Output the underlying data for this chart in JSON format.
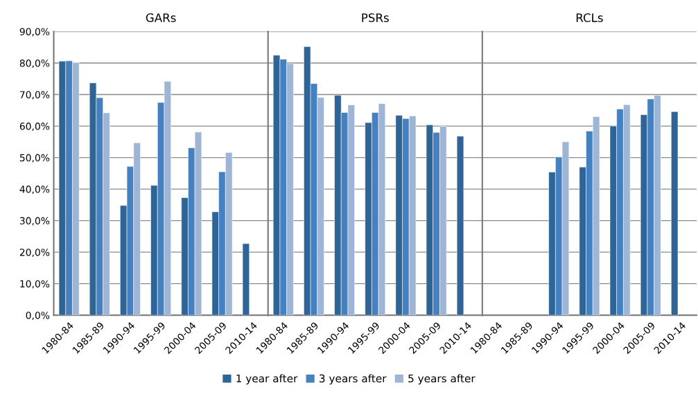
{
  "chart_data": [
    {
      "type": "bar",
      "title": "GARs",
      "categories": [
        "1980-84",
        "1985-89",
        "1990-94",
        "1995-99",
        "2000-04",
        "2005-09",
        "2010-14"
      ],
      "series": [
        {
          "name": "1 year after",
          "color": "#2f6497",
          "values": [
            80.6,
            73.7,
            34.8,
            41.2,
            37.3,
            32.8,
            22.7
          ]
        },
        {
          "name": "3 years after",
          "color": "#4580c0",
          "values": [
            80.7,
            69.0,
            47.2,
            67.5,
            53.1,
            45.5,
            null
          ]
        },
        {
          "name": "5 years after",
          "color": "#9fb5d5",
          "values": [
            80.1,
            64.2,
            54.7,
            74.2,
            58.1,
            51.6,
            null
          ]
        }
      ],
      "ylim": [
        0,
        90
      ],
      "yticks": [
        {
          "value": 0,
          "label": "0,0%"
        },
        {
          "value": 10,
          "label": "10,0%"
        },
        {
          "value": 20,
          "label": "20,0%"
        },
        {
          "value": 30,
          "label": "30,0%"
        },
        {
          "value": 40,
          "label": "40,0%"
        },
        {
          "value": 50,
          "label": "50,0%"
        },
        {
          "value": 60,
          "label": "60,0%"
        },
        {
          "value": 70,
          "label": "70,0%"
        },
        {
          "value": 80,
          "label": "80,0%"
        },
        {
          "value": 90,
          "label": "90,0%"
        }
      ],
      "grid": "y",
      "legend": "bottom"
    },
    {
      "type": "bar",
      "title": "PSRs",
      "categories": [
        "1980-84",
        "1985-89",
        "1990-94",
        "1995-99",
        "2000-04",
        "2005-09",
        "2010-14"
      ],
      "series": [
        {
          "color": "#2f6497",
          "values": [
            82.5,
            85.2,
            69.8,
            61.1,
            63.4,
            60.4,
            56.8
          ]
        },
        {
          "color": "#4580c0",
          "values": [
            81.2,
            73.5,
            64.3,
            64.3,
            62.4,
            58.0,
            null
          ]
        },
        {
          "color": "#9fb5d5",
          "values": [
            79.8,
            69.1,
            66.7,
            67.1,
            63.2,
            59.9,
            null
          ]
        }
      ],
      "ylim": [
        0,
        90
      ],
      "yticks": [
        {
          "value": 0,
          "label": null
        },
        {
          "value": 10,
          "label": null
        },
        {
          "value": 20,
          "label": null
        },
        {
          "value": 30,
          "label": null
        },
        {
          "value": 40,
          "label": null
        },
        {
          "value": 50,
          "label": null
        },
        {
          "value": 60,
          "label": null
        },
        {
          "value": 70,
          "label": null
        },
        {
          "value": 80,
          "label": null
        },
        {
          "value": 90,
          "label": null
        }
      ],
      "grid": "y",
      "tick_labels": "x"
    },
    {
      "type": "bar",
      "title": "RCLs",
      "categories": [
        "1980-84",
        "1985-89",
        "1990-94",
        "1995-99",
        "2000-04",
        "2005-09",
        "2010-14"
      ],
      "series": [
        {
          "color": "#2f6497",
          "values": [
            null,
            null,
            45.4,
            47.0,
            60.0,
            63.6,
            64.6
          ]
        },
        {
          "color": "#4580c0",
          "values": [
            null,
            null,
            50.2,
            58.4,
            65.4,
            68.6,
            null
          ]
        },
        {
          "color": "#9fb5d5",
          "values": [
            null,
            null,
            55.0,
            63.0,
            66.8,
            69.8,
            null
          ]
        }
      ],
      "ylim": [
        0,
        90
      ],
      "yticks": [
        {
          "value": 0,
          "label": null
        },
        {
          "value": 10,
          "label": null
        },
        {
          "value": 20,
          "label": null
        },
        {
          "value": 30,
          "label": null
        },
        {
          "value": 40,
          "label": null
        },
        {
          "value": 50,
          "label": null
        },
        {
          "value": 60,
          "label": null
        },
        {
          "value": 70,
          "label": null
        },
        {
          "value": 80,
          "label": null
        },
        {
          "value": 90,
          "label": null
        }
      ],
      "grid": "y",
      "tick_labels": "x"
    }
  ]
}
